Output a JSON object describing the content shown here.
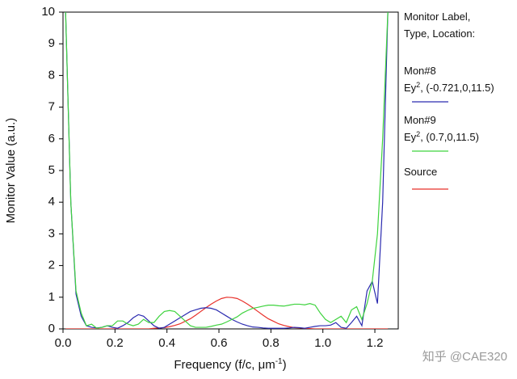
{
  "chart_data": {
    "type": "line",
    "y_label": "Monitor Value (a.u.)",
    "x_label": [
      "Frequency (f/c, μm",
      "-1",
      ")"
    ],
    "legend_title": [
      "Monitor Label,",
      "Type, Location:"
    ],
    "watermark": "知乎 @CAE320",
    "xlim": [
      0,
      1.29
    ],
    "ylim": [
      0,
      10
    ],
    "xticks": [
      {
        "value": 0,
        "label": "0.0"
      },
      0.2,
      0.4,
      0.6,
      0.8,
      {
        "value": 1,
        "label": "1.0"
      },
      1.2
    ],
    "yticks": [
      0,
      1,
      2,
      3,
      4,
      5,
      6,
      7,
      8,
      9,
      10
    ],
    "x": [
      0.01,
      0.03,
      0.05,
      0.07,
      0.09,
      0.11,
      0.13,
      0.15,
      0.17,
      0.19,
      0.21,
      0.23,
      0.25,
      0.27,
      0.29,
      0.31,
      0.33,
      0.35,
      0.37,
      0.39,
      0.41,
      0.43,
      0.45,
      0.47,
      0.49,
      0.51,
      0.53,
      0.55,
      0.57,
      0.59,
      0.61,
      0.63,
      0.65,
      0.67,
      0.69,
      0.71,
      0.73,
      0.75,
      0.77,
      0.79,
      0.81,
      0.83,
      0.85,
      0.87,
      0.89,
      0.91,
      0.93,
      0.95,
      0.97,
      0.99,
      1.01,
      1.03,
      1.05,
      1.07,
      1.09,
      1.11,
      1.13,
      1.15,
      1.17,
      1.19,
      1.21,
      1.23,
      1.25
    ],
    "series": [
      {
        "name": "Source",
        "details": [],
        "color": "#e8302a",
        "values": [
          0,
          0,
          0,
          0,
          0,
          0,
          0,
          0,
          0,
          0,
          0,
          0,
          0,
          0,
          0,
          0,
          0,
          0.02,
          0.03,
          0.04,
          0.07,
          0.11,
          0.16,
          0.24,
          0.32,
          0.43,
          0.55,
          0.67,
          0.78,
          0.88,
          0.96,
          1.0,
          0.99,
          0.96,
          0.88,
          0.78,
          0.67,
          0.55,
          0.43,
          0.32,
          0.24,
          0.16,
          0.11,
          0.07,
          0.04,
          0.03,
          0.02,
          0.01,
          0,
          0,
          0,
          0,
          0,
          0,
          0,
          0,
          0,
          0,
          0,
          0,
          0,
          0,
          0
        ]
      },
      {
        "name": "Mon#8",
        "details": [
          "Ey",
          "2",
          ", (-0.721,0,11.5)"
        ],
        "color": "#2b2bb0",
        "values": [
          10,
          4,
          1.1,
          0.4,
          0.1,
          0.05,
          0.03,
          0.05,
          0.1,
          0.05,
          0.02,
          0.1,
          0.2,
          0.35,
          0.45,
          0.4,
          0.25,
          0.1,
          0.02,
          0.05,
          0.15,
          0.25,
          0.35,
          0.45,
          0.55,
          0.6,
          0.65,
          0.67,
          0.65,
          0.6,
          0.5,
          0.4,
          0.3,
          0.22,
          0.15,
          0.1,
          0.06,
          0.05,
          0.03,
          0.02,
          0.02,
          0.02,
          0.02,
          0.03,
          0.05,
          0.04,
          0.02,
          0.05,
          0.08,
          0.1,
          0.1,
          0.12,
          0.2,
          0.05,
          0.02,
          0.2,
          0.4,
          0.1,
          1.2,
          1.5,
          0.8,
          4,
          10
        ]
      },
      {
        "name": "Mon#9",
        "details": [
          "Ey",
          "2",
          ", (0.7,0,11.5)"
        ],
        "color": "#3ed33e",
        "values": [
          10,
          4,
          1.2,
          0.5,
          0.1,
          0.15,
          0.02,
          0.05,
          0.1,
          0.1,
          0.25,
          0.25,
          0.15,
          0.1,
          0.15,
          0.3,
          0.2,
          0.2,
          0.4,
          0.55,
          0.58,
          0.55,
          0.4,
          0.25,
          0.1,
          0.05,
          0.05,
          0.05,
          0.08,
          0.12,
          0.15,
          0.22,
          0.3,
          0.38,
          0.5,
          0.58,
          0.65,
          0.68,
          0.72,
          0.75,
          0.75,
          0.73,
          0.72,
          0.75,
          0.78,
          0.78,
          0.76,
          0.8,
          0.75,
          0.5,
          0.3,
          0.2,
          0.3,
          0.4,
          0.2,
          0.6,
          0.7,
          0.3,
          0.8,
          1.5,
          3,
          6,
          10
        ]
      }
    ],
    "legend_order": [
      1,
      2,
      0
    ]
  }
}
